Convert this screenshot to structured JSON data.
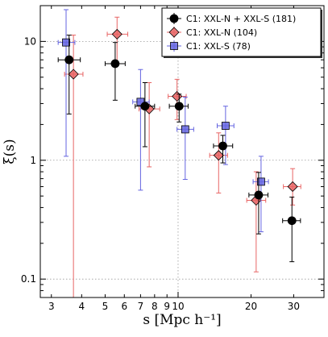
{
  "chart_data": {
    "type": "scatter",
    "xscale": "log",
    "yscale": "log",
    "xlim": [
      2.7,
      40
    ],
    "ylim": [
      0.07,
      20
    ],
    "xticks": [
      3,
      4,
      5,
      6,
      7,
      8,
      9,
      10,
      20,
      30
    ],
    "xtick_labels": [
      "3",
      "4",
      "5",
      "6",
      "7",
      "8",
      "9",
      "10",
      "20",
      "30"
    ],
    "yticks": [
      0.1,
      1,
      10
    ],
    "ytick_labels": [
      "0.1",
      "1",
      "10"
    ],
    "xlabel": "s [Mpc h⁻¹]",
    "ylabel": "ξ(s)",
    "grid": "dotted at 0.1, 1, 10 and x=10",
    "legend_placement": "top-right",
    "series": [
      {
        "name": "C1: XXL-N + XXL-S (181)",
        "color": "#000000",
        "marker": "circle",
        "points": [
          {
            "x": 3.55,
            "y": 7.0,
            "xerr": [
              0.35,
              0.4
            ],
            "yerr": [
              2.45,
              11.3
            ]
          },
          {
            "x": 5.5,
            "y": 6.5,
            "xerr": [
              0.5,
              0.55
            ],
            "yerr": [
              3.2,
              9.8
            ]
          },
          {
            "x": 7.3,
            "y": 2.85,
            "xerr": [
              0.65,
              0.7
            ],
            "yerr": [
              1.3,
              4.5
            ]
          },
          {
            "x": 10.1,
            "y": 2.85,
            "xerr": [
              0.9,
              0.9
            ],
            "yerr": [
              2.1,
              3.6
            ]
          },
          {
            "x": 15.3,
            "y": 1.32,
            "xerr": [
              1.3,
              1.5
            ],
            "yerr": [
              0.95,
              1.62
            ]
          },
          {
            "x": 21.5,
            "y": 0.51,
            "xerr": [
              1.9,
              2.0
            ],
            "yerr": [
              0.24,
              0.79
            ]
          },
          {
            "x": 29.5,
            "y": 0.31,
            "xerr": [
              2.5,
              2.5
            ],
            "yerr": [
              0.14,
              0.49
            ]
          }
        ]
      },
      {
        "name": "C1: XXL-N (104)",
        "color": "#e86464",
        "marker": "diamond",
        "points": [
          {
            "x": 3.7,
            "y": 5.3,
            "xerr": [
              0.3,
              0.35
            ],
            "yerr": [
              0.07,
              11.3
            ]
          },
          {
            "x": 5.6,
            "y": 11.5,
            "xerr": [
              0.5,
              0.6
            ],
            "yerr": [
              6.5,
              16.0
            ]
          },
          {
            "x": 7.6,
            "y": 2.7,
            "xerr": [
              0.7,
              0.8
            ],
            "yerr": [
              0.88,
              4.5
            ]
          },
          {
            "x": 9.9,
            "y": 3.45,
            "xerr": [
              0.8,
              0.9
            ],
            "yerr": [
              2.2,
              4.8
            ]
          },
          {
            "x": 14.7,
            "y": 1.1,
            "xerr": [
              1.2,
              1.3
            ],
            "yerr": [
              0.53,
              1.7
            ]
          },
          {
            "x": 21.0,
            "y": 0.46,
            "xerr": [
              1.8,
              2.0
            ],
            "yerr": [
              0.115,
              0.8
            ]
          },
          {
            "x": 29.7,
            "y": 0.6,
            "xerr": [
              2.5,
              2.4
            ],
            "yerr": [
              0.42,
              0.85
            ]
          }
        ]
      },
      {
        "name": "C1: XXL-S (78)",
        "color": "#6464e0",
        "marker": "square",
        "points": [
          {
            "x": 3.45,
            "y": 9.8,
            "xerr": [
              0.25,
              0.3
            ],
            "yerr": [
              1.08,
              18.5
            ]
          },
          {
            "x": 7.0,
            "y": 3.1,
            "xerr": [
              0.5,
              0.6
            ],
            "yerr": [
              0.56,
              5.8
            ]
          },
          {
            "x": 10.7,
            "y": 1.82,
            "xerr": [
              0.8,
              0.9
            ],
            "yerr": [
              0.69,
              3.4
            ]
          },
          {
            "x": 15.7,
            "y": 1.95,
            "xerr": [
              1.2,
              1.3
            ],
            "yerr": [
              0.92,
              2.85
            ]
          },
          {
            "x": 22.0,
            "y": 0.66,
            "xerr": [
              1.6,
              1.6
            ],
            "yerr": [
              0.25,
              1.08
            ]
          }
        ]
      }
    ]
  }
}
